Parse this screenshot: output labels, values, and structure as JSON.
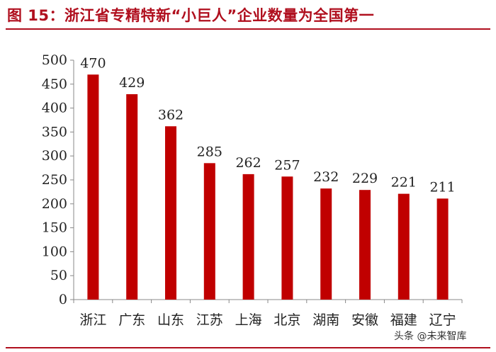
{
  "title": "图 15：浙江省专精特新“小巨人”企业数量为全国第一",
  "watermark": "头条 @未来智库",
  "colors": {
    "accent": "#b00f1e",
    "bar": "#c00000",
    "axis": "#888888"
  },
  "chart_data": {
    "type": "bar",
    "title": "图 15：浙江省专精特新“小巨人”企业数量为全国第一",
    "xlabel": "",
    "ylabel": "",
    "categories": [
      "浙江",
      "广东",
      "山东",
      "江苏",
      "上海",
      "北京",
      "湖南",
      "安徽",
      "福建",
      "辽宁"
    ],
    "values": [
      470,
      429,
      362,
      285,
      262,
      257,
      232,
      229,
      221,
      211
    ],
    "ylim": [
      0,
      500
    ],
    "yticks": [
      0,
      50,
      100,
      150,
      200,
      250,
      300,
      350,
      400,
      450,
      500
    ],
    "grid": false,
    "legend": "none",
    "data_labels": true
  }
}
